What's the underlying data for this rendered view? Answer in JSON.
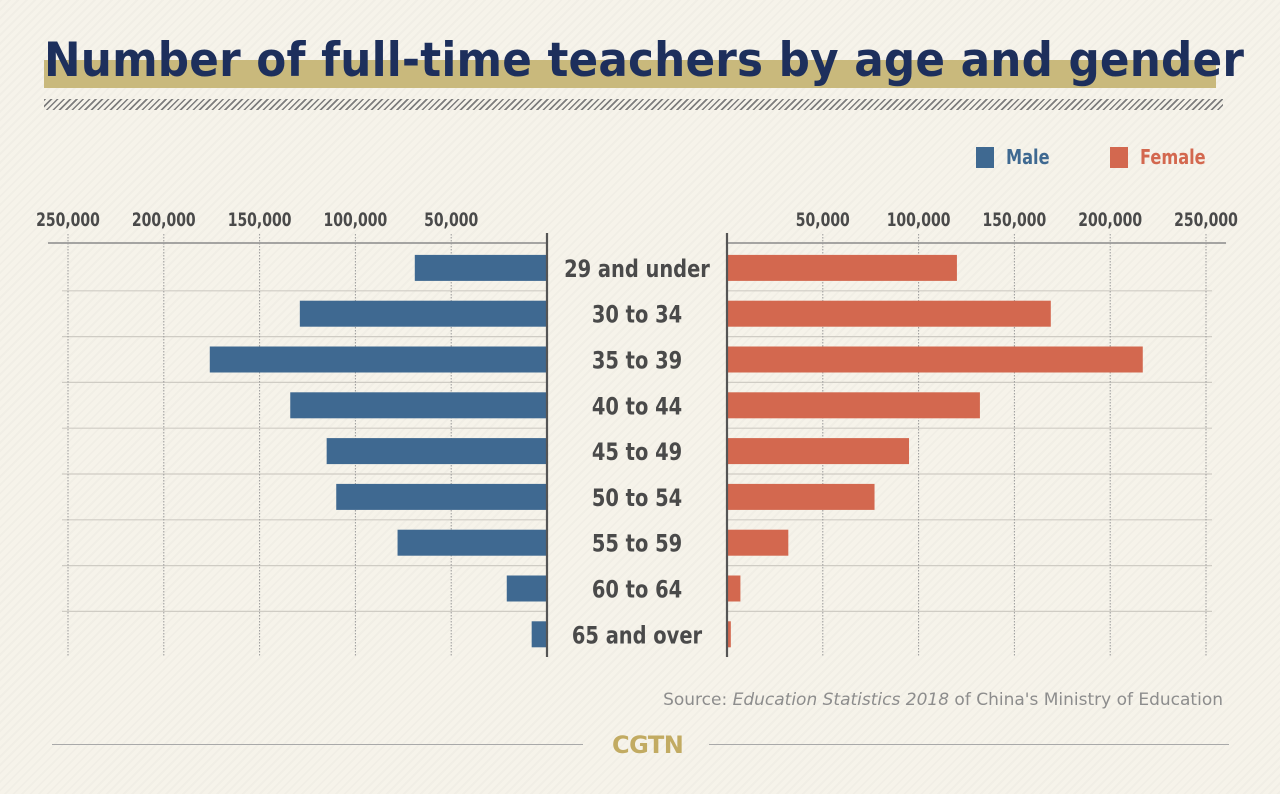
{
  "header": {
    "title": "Number of full-time teachers by age and gender"
  },
  "legend": {
    "male_label": "Male",
    "female_label": "Female"
  },
  "colors": {
    "male": "#3f6991",
    "female": "#d3684f",
    "title": "#1d2f5c",
    "highlight": "#c9b97c",
    "text": "#4a4a4a",
    "logo": "#c2ab62"
  },
  "chart_data": {
    "type": "bar",
    "orientation": "horizontal-population-pyramid",
    "title": "Number of full-time teachers by age and gender",
    "categories": [
      "29 and under",
      "30 to 34",
      "35 to 39",
      "40 to 44",
      "45 to 49",
      "50 to 54",
      "55 to 59",
      "60 to 64",
      "65 and over"
    ],
    "series": [
      {
        "name": "Male",
        "side": "left",
        "values": [
          69000,
          129000,
          176000,
          134000,
          115000,
          110000,
          78000,
          21000,
          8000
        ]
      },
      {
        "name": "Female",
        "side": "right",
        "values": [
          120000,
          169000,
          217000,
          132000,
          95000,
          77000,
          32000,
          7000,
          2000
        ]
      }
    ],
    "xlim": [
      0,
      250000
    ],
    "tick_values": [
      50000,
      100000,
      150000,
      200000,
      250000
    ],
    "tick_labels": [
      "50,000",
      "100,000",
      "150,000",
      "200,000",
      "250,000"
    ],
    "grid": true,
    "legend_position": "top-right",
    "xlabel": "",
    "ylabel": ""
  },
  "footer": {
    "source_prefix": "Source: ",
    "source_title": "Education Statistics 2018",
    "source_suffix": " of China's Ministry of Education",
    "logo": "CGTN"
  }
}
